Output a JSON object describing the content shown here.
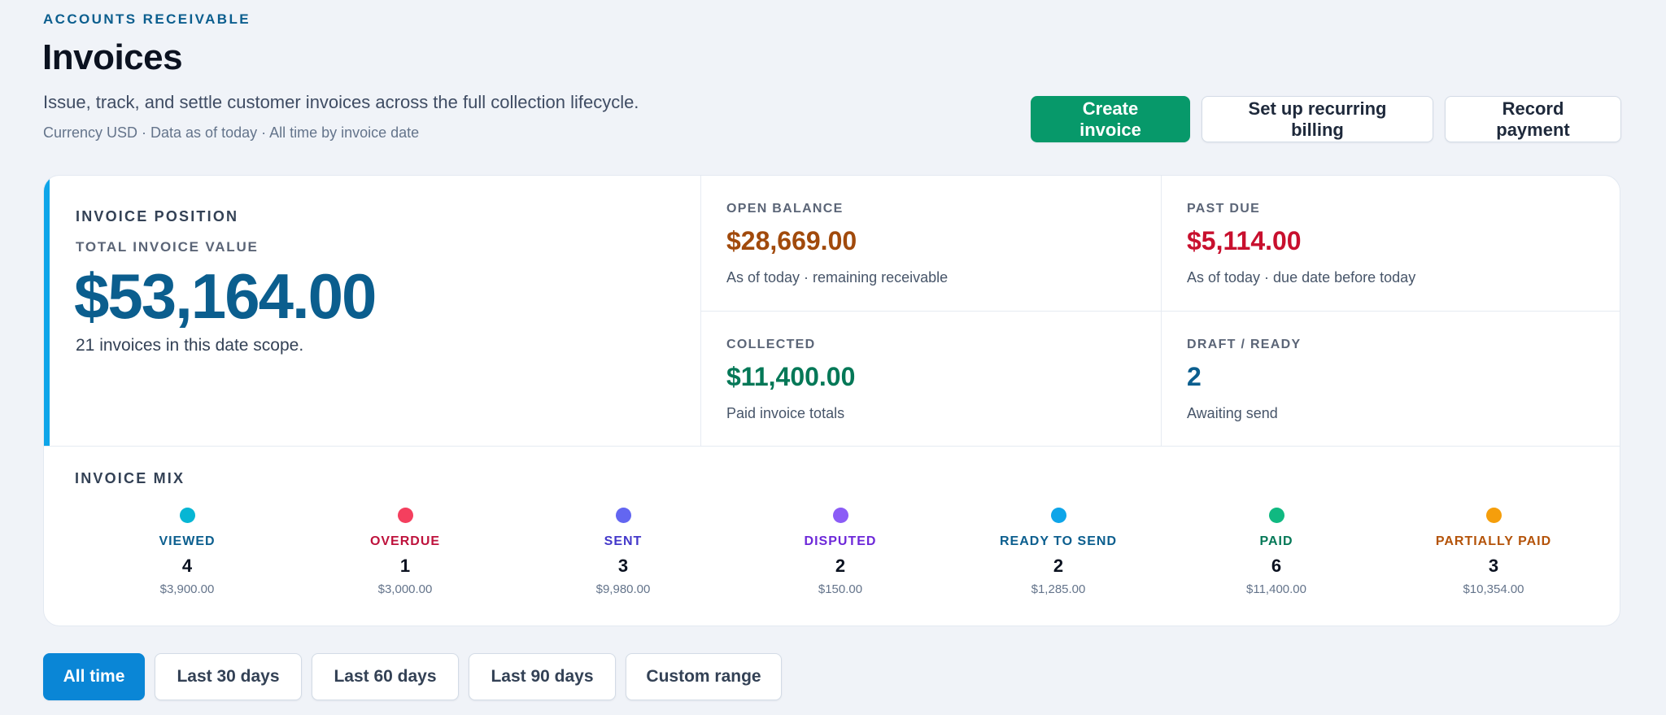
{
  "header": {
    "eyebrow": "ACCOUNTS RECEIVABLE",
    "title": "Invoices",
    "subtitle": "Issue, track, and settle customer invoices across the full collection lifecycle.",
    "meta": "Currency USD · Data as of today · All time by invoice date"
  },
  "actions": {
    "create": "Create invoice",
    "recurring": "Set up recurring billing",
    "record": "Record payment"
  },
  "summary": {
    "section_label": "INVOICE POSITION",
    "total_label": "TOTAL INVOICE VALUE",
    "total_value": "$53,164.00",
    "total_sub": "21 invoices in this date scope.",
    "stats": [
      {
        "label": "OPEN BALANCE",
        "value": "$28,669.00",
        "desc": "As of today · remaining receivable",
        "color": "#a14a0c"
      },
      {
        "label": "PAST DUE",
        "value": "$5,114.00",
        "desc": "As of today · due date before today",
        "color": "#c8102e"
      },
      {
        "label": "COLLECTED",
        "value": "$11,400.00",
        "desc": "Paid invoice totals",
        "color": "#047857"
      },
      {
        "label": "DRAFT / READY",
        "value": "2",
        "desc": "Awaiting send",
        "color": "#0b5e8e"
      }
    ]
  },
  "mix": {
    "title": "INVOICE MIX",
    "items": [
      {
        "label": "VIEWED",
        "count": "4",
        "amount": "$3,900.00",
        "dot": "#06b6d4",
        "text_color": "#0b5e8e"
      },
      {
        "label": "OVERDUE",
        "count": "1",
        "amount": "$3,000.00",
        "dot": "#f43f5e",
        "text_color": "#be123c"
      },
      {
        "label": "SENT",
        "count": "3",
        "amount": "$9,980.00",
        "dot": "#6366f1",
        "text_color": "#4338ca"
      },
      {
        "label": "DISPUTED",
        "count": "2",
        "amount": "$150.00",
        "dot": "#8b5cf6",
        "text_color": "#6d28d9"
      },
      {
        "label": "READY TO SEND",
        "count": "2",
        "amount": "$1,285.00",
        "dot": "#0ea5e9",
        "text_color": "#0b5e8e"
      },
      {
        "label": "PAID",
        "count": "6",
        "amount": "$11,400.00",
        "dot": "#10b981",
        "text_color": "#047857"
      },
      {
        "label": "PARTIALLY PAID",
        "count": "3",
        "amount": "$10,354.00",
        "dot": "#f59e0b",
        "text_color": "#b45309"
      }
    ]
  },
  "filters": {
    "all": "All time",
    "d30": "Last 30 days",
    "d60": "Last 60 days",
    "d90": "Last 90 days",
    "custom": "Custom range",
    "active": "All time"
  }
}
